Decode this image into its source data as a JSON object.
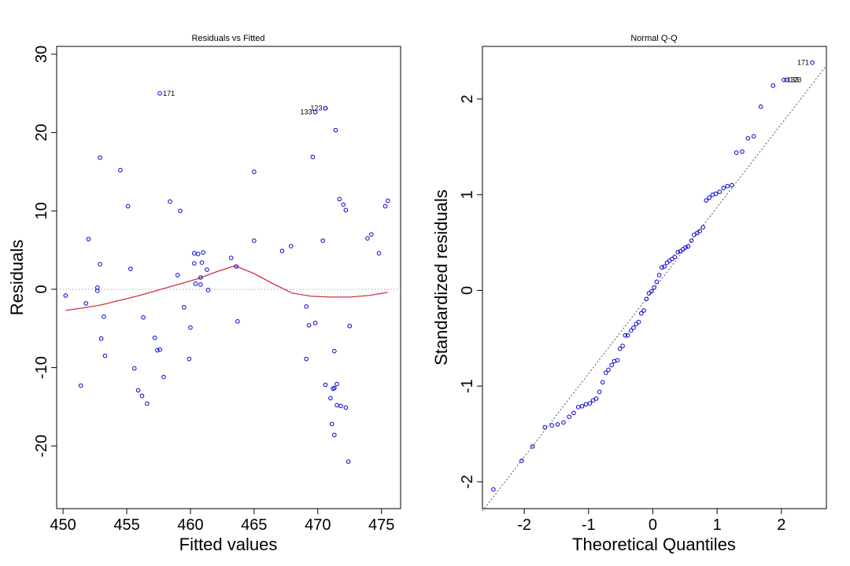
{
  "chart_data": [
    {
      "type": "scatter",
      "title": "Residuals vs Fitted",
      "xlabel": "Fitted values",
      "ylabel": "Residuals",
      "xlim": [
        449.5,
        476.5
      ],
      "ylim": [
        -28,
        31
      ],
      "xticks": [
        "450",
        "455",
        "460",
        "465",
        "470",
        "475"
      ],
      "xtick_values": [
        450,
        455,
        460,
        465,
        470,
        475
      ],
      "yticks": [
        "-20",
        "-10",
        "0",
        "10",
        "20",
        "30"
      ],
      "ytick_values": [
        -20,
        -10,
        0,
        10,
        20,
        30
      ],
      "grid": false,
      "reference_line": 0,
      "point_color": "#0000cc",
      "smooth_color": "#cc3344",
      "points": [
        [
          450.2,
          -0.8
        ],
        [
          451.4,
          -12.3
        ],
        [
          451.8,
          -1.8
        ],
        [
          452.0,
          6.4
        ],
        [
          452.7,
          0.2
        ],
        [
          452.7,
          -0.2
        ],
        [
          452.9,
          16.8
        ],
        [
          452.9,
          3.2
        ],
        [
          453.0,
          -6.3
        ],
        [
          453.2,
          -3.5
        ],
        [
          453.3,
          -8.5
        ],
        [
          454.5,
          15.2
        ],
        [
          455.1,
          10.6
        ],
        [
          455.3,
          2.6
        ],
        [
          455.6,
          -10.1
        ],
        [
          455.9,
          -12.9
        ],
        [
          456.2,
          -13.6
        ],
        [
          456.3,
          -3.6
        ],
        [
          456.6,
          -14.6
        ],
        [
          457.2,
          -6.2
        ],
        [
          457.4,
          -7.8
        ],
        [
          457.6,
          -7.7
        ],
        [
          457.9,
          -11.2
        ],
        [
          458.4,
          11.2
        ],
        [
          459.0,
          1.8
        ],
        [
          459.2,
          10.0
        ],
        [
          459.5,
          -2.3
        ],
        [
          459.9,
          -8.9
        ],
        [
          460.0,
          -4.9
        ],
        [
          460.3,
          4.6
        ],
        [
          460.3,
          3.3
        ],
        [
          460.4,
          0.7
        ],
        [
          460.6,
          4.5
        ],
        [
          460.8,
          0.6
        ],
        [
          460.8,
          1.5
        ],
        [
          460.9,
          3.4
        ],
        [
          461.0,
          4.7
        ],
        [
          461.3,
          2.5
        ],
        [
          461.4,
          -0.1
        ],
        [
          463.2,
          4.0
        ],
        [
          463.6,
          2.9
        ],
        [
          463.7,
          -4.1
        ],
        [
          465.0,
          15.0
        ],
        [
          465.0,
          6.2
        ],
        [
          467.2,
          4.9
        ],
        [
          467.9,
          5.5
        ],
        [
          469.1,
          -2.2
        ],
        [
          469.1,
          -8.9
        ],
        [
          469.3,
          -4.6
        ],
        [
          469.6,
          16.9
        ],
        [
          469.8,
          -4.3
        ],
        [
          470.4,
          6.2
        ],
        [
          470.6,
          -12.2
        ],
        [
          470.6,
          23.1
        ],
        [
          471.0,
          -13.9
        ],
        [
          471.1,
          -17.2
        ],
        [
          471.2,
          -12.7
        ],
        [
          471.3,
          -12.6
        ],
        [
          471.3,
          -18.6
        ],
        [
          471.3,
          -7.9
        ],
        [
          471.4,
          20.3
        ],
        [
          471.5,
          -12.1
        ],
        [
          471.5,
          -14.8
        ],
        [
          471.7,
          11.5
        ],
        [
          471.8,
          -14.9
        ],
        [
          472.0,
          10.8
        ],
        [
          472.2,
          10.1
        ],
        [
          472.2,
          -15.1
        ],
        [
          472.4,
          -22.0
        ],
        [
          472.5,
          -4.7
        ],
        [
          473.9,
          6.5
        ],
        [
          474.2,
          7.0
        ],
        [
          474.8,
          4.6
        ],
        [
          475.3,
          10.6
        ],
        [
          475.5,
          11.3
        ]
      ],
      "labeled_points": [
        {
          "label": "171",
          "x": 457.6,
          "y": 25.0,
          "side": "right"
        },
        {
          "label": "123",
          "x": 470.6,
          "y": 23.1,
          "side": "left"
        },
        {
          "label": "133",
          "x": 469.8,
          "y": 22.6,
          "side": "left"
        }
      ],
      "smooth_curve": [
        [
          450.2,
          -2.7
        ],
        [
          451.5,
          -2.4
        ],
        [
          453.0,
          -2.0
        ],
        [
          454.5,
          -1.4
        ],
        [
          456.0,
          -0.8
        ],
        [
          457.5,
          -0.1
        ],
        [
          459.0,
          0.6
        ],
        [
          460.5,
          1.3
        ],
        [
          462.0,
          2.2
        ],
        [
          463.5,
          3.0
        ],
        [
          465.0,
          2.0
        ],
        [
          466.5,
          0.7
        ],
        [
          468.0,
          -0.5
        ],
        [
          469.5,
          -0.9
        ],
        [
          471.0,
          -1.0
        ],
        [
          472.5,
          -1.0
        ],
        [
          474.0,
          -0.8
        ],
        [
          475.5,
          -0.4
        ]
      ]
    },
    {
      "type": "scatter",
      "title": "Normal Q-Q",
      "xlabel": "Theoretical Quantiles",
      "ylabel": "Standardized residuals",
      "xlim": [
        -2.65,
        2.7
      ],
      "ylim": [
        -2.28,
        2.55
      ],
      "xticks": [
        "-2",
        "-1",
        "0",
        "1",
        "2"
      ],
      "xtick_values": [
        -2,
        -1,
        0,
        1,
        2
      ],
      "yticks": [
        "-2",
        "-1",
        "0",
        "1",
        "2"
      ],
      "ytick_values": [
        -2,
        -1,
        0,
        1,
        2
      ],
      "grid": false,
      "point_color": "#0000cc",
      "reference_line": {
        "intercept": 0.0,
        "slope": 0.87
      },
      "points": [
        [
          -2.48,
          -2.08
        ],
        [
          -2.04,
          -1.78
        ],
        [
          -1.87,
          -1.63
        ],
        [
          -1.68,
          -1.43
        ],
        [
          -1.57,
          -1.41
        ],
        [
          -1.48,
          -1.4
        ],
        [
          -1.39,
          -1.38
        ],
        [
          -1.3,
          -1.32
        ],
        [
          -1.23,
          -1.28
        ],
        [
          -1.16,
          -1.22
        ],
        [
          -1.1,
          -1.21
        ],
        [
          -1.04,
          -1.19
        ],
        [
          -0.98,
          -1.18
        ],
        [
          -0.93,
          -1.15
        ],
        [
          -0.88,
          -1.13
        ],
        [
          -0.83,
          -1.06
        ],
        [
          -0.78,
          -0.96
        ],
        [
          -0.73,
          -0.86
        ],
        [
          -0.69,
          -0.83
        ],
        [
          -0.64,
          -0.78
        ],
        [
          -0.6,
          -0.74
        ],
        [
          -0.55,
          -0.73
        ],
        [
          -0.51,
          -0.61
        ],
        [
          -0.47,
          -0.58
        ],
        [
          -0.43,
          -0.47
        ],
        [
          -0.39,
          -0.47
        ],
        [
          -0.34,
          -0.42
        ],
        [
          -0.3,
          -0.39
        ],
        [
          -0.26,
          -0.35
        ],
        [
          -0.22,
          -0.33
        ],
        [
          -0.18,
          -0.24
        ],
        [
          -0.14,
          -0.21
        ],
        [
          -0.1,
          -0.09
        ],
        [
          -0.06,
          -0.03
        ],
        [
          -0.02,
          -0.01
        ],
        [
          0.02,
          0.03
        ],
        [
          0.06,
          0.09
        ],
        [
          0.1,
          0.16
        ],
        [
          0.14,
          0.24
        ],
        [
          0.18,
          0.25
        ],
        [
          0.22,
          0.29
        ],
        [
          0.26,
          0.31
        ],
        [
          0.3,
          0.33
        ],
        [
          0.34,
          0.35
        ],
        [
          0.39,
          0.4
        ],
        [
          0.43,
          0.41
        ],
        [
          0.47,
          0.43
        ],
        [
          0.51,
          0.45
        ],
        [
          0.55,
          0.46
        ],
        [
          0.6,
          0.52
        ],
        [
          0.64,
          0.58
        ],
        [
          0.69,
          0.6
        ],
        [
          0.73,
          0.62
        ],
        [
          0.78,
          0.66
        ],
        [
          0.83,
          0.94
        ],
        [
          0.88,
          0.97
        ],
        [
          0.93,
          1.0
        ],
        [
          0.98,
          1.01
        ],
        [
          1.04,
          1.03
        ],
        [
          1.1,
          1.07
        ],
        [
          1.16,
          1.09
        ],
        [
          1.23,
          1.1
        ],
        [
          1.3,
          1.44
        ],
        [
          1.39,
          1.45
        ],
        [
          1.48,
          1.59
        ],
        [
          1.57,
          1.61
        ],
        [
          1.68,
          1.92
        ],
        [
          1.87,
          2.14
        ]
      ],
      "labeled_points": [
        {
          "label": "133",
          "x": 2.04,
          "y": 2.2,
          "side": "right"
        },
        {
          "label": "123",
          "x": 2.08,
          "y": 2.2,
          "side": "right"
        },
        {
          "label": "171",
          "x": 2.48,
          "y": 2.38,
          "side": "left"
        }
      ]
    }
  ]
}
